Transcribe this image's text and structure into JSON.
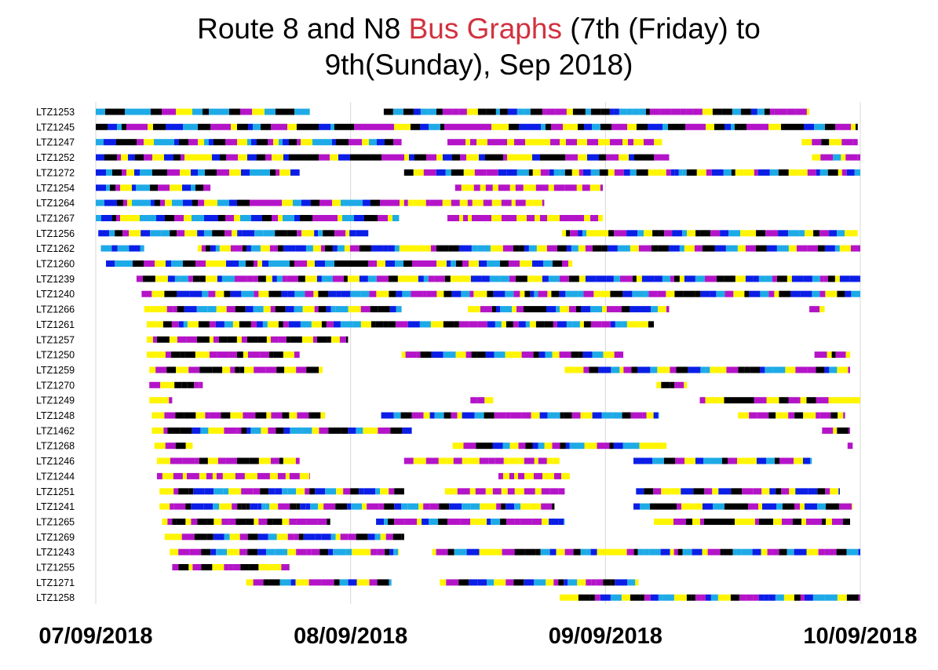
{
  "title": {
    "line1_pre": "Route 8 and N8 ",
    "line1_highlight": "Bus Graphs",
    "line1_post": " (7th (Friday) to",
    "line2": "9th(Sunday), Sep 2018)"
  },
  "colors": {
    "title_highlight": "#d2323f",
    "black": "#000000",
    "blue": "#0a1ee6",
    "lightblue": "#1eaae6",
    "magenta": "#b414c8",
    "yellow": "#fff500",
    "gridline": "#d9d9d9"
  },
  "chart_data": {
    "type": "timeline",
    "x_axis_unit": "days since 07/09/2018 00:00",
    "xlim": [
      0,
      3
    ],
    "x_ticks": [
      {
        "value": 0,
        "label": "07/09/2018"
      },
      {
        "value": 1,
        "label": "08/09/2018"
      },
      {
        "value": 2,
        "label": "09/09/2018"
      },
      {
        "value": 3,
        "label": "10/09/2018"
      }
    ],
    "grid": "vertical at day boundaries",
    "color_order": [
      "blue",
      "lightblue",
      "black",
      "magenta",
      "yellow"
    ],
    "buses": [
      {
        "id": "LTZ1253",
        "segments": [
          [
            0.0,
            0.84,
            "cdcdmmy"
          ],
          [
            1.13,
            2.8,
            "dcdbcdmmmy"
          ]
        ]
      },
      {
        "id": "LTZ1245",
        "segments": [
          [
            0.0,
            2.99,
            "dbcdmmy"
          ]
        ]
      },
      {
        "id": "LTZ1247",
        "segments": [
          [
            0.0,
            1.2,
            "cbdmy"
          ],
          [
            1.38,
            2.21,
            "my"
          ],
          [
            2.21,
            2.21,
            "y"
          ],
          [
            2.77,
            2.99,
            "ymd"
          ]
        ]
      },
      {
        "id": "LTZ1252",
        "segments": [
          [
            0.0,
            2.25,
            "bdmy"
          ],
          [
            2.81,
            3.0,
            "ymc"
          ]
        ]
      },
      {
        "id": "LTZ1272",
        "segments": [
          [
            0.0,
            0.8,
            "bcdmy"
          ],
          [
            1.21,
            3.0,
            "dymbc"
          ]
        ]
      },
      {
        "id": "LTZ1254",
        "segments": [
          [
            0.0,
            0.45,
            "bcdmy"
          ],
          [
            1.41,
            1.99,
            "my"
          ]
        ]
      },
      {
        "id": "LTZ1264",
        "segments": [
          [
            0.0,
            1.21,
            "cbdmy"
          ],
          [
            1.21,
            1.76,
            "my"
          ]
        ]
      },
      {
        "id": "LTZ1267",
        "segments": [
          [
            0.0,
            1.19,
            "cbdmy"
          ],
          [
            1.38,
            1.99,
            "my"
          ]
        ]
      },
      {
        "id": "LTZ1256",
        "segments": [
          [
            0.01,
            1.07,
            "bcdmy"
          ],
          [
            1.83,
            2.99,
            "ydmbc"
          ]
        ]
      },
      {
        "id": "LTZ1262",
        "segments": [
          [
            0.02,
            0.19,
            "cb"
          ],
          [
            0.4,
            3.0,
            "ymdbc"
          ]
        ]
      },
      {
        "id": "LTZ1260",
        "segments": [
          [
            0.04,
            1.87,
            "bcdmy"
          ]
        ]
      },
      {
        "id": "LTZ1239",
        "segments": [
          [
            0.16,
            3.0,
            "mdybc"
          ]
        ]
      },
      {
        "id": "LTZ1240",
        "segments": [
          [
            0.18,
            3.0,
            "mydbc"
          ]
        ]
      },
      {
        "id": "LTZ1266",
        "segments": [
          [
            0.19,
            1.2,
            "ymdbc"
          ],
          [
            1.46,
            2.25,
            "ymdbc"
          ],
          [
            2.8,
            2.86,
            "my"
          ]
        ]
      },
      {
        "id": "LTZ1261",
        "segments": [
          [
            0.2,
            2.19,
            "ydmbc"
          ]
        ]
      },
      {
        "id": "LTZ1257",
        "segments": [
          [
            0.2,
            0.99,
            "ymd"
          ]
        ]
      },
      {
        "id": "LTZ1250",
        "segments": [
          [
            0.2,
            0.8,
            "ymd"
          ],
          [
            1.2,
            2.07,
            "ymdbc"
          ],
          [
            2.82,
            2.96,
            "myd"
          ]
        ]
      },
      {
        "id": "LTZ1259",
        "segments": [
          [
            0.21,
            0.89,
            "ymd"
          ],
          [
            1.84,
            2.96,
            "ymdbc"
          ]
        ]
      },
      {
        "id": "LTZ1270",
        "segments": [
          [
            0.21,
            0.42,
            "myd"
          ],
          [
            2.2,
            2.32,
            "ydm"
          ]
        ]
      },
      {
        "id": "LTZ1249",
        "segments": [
          [
            0.21,
            0.3,
            "ym"
          ],
          [
            1.47,
            1.56,
            "my"
          ],
          [
            2.37,
            3.0,
            "myd"
          ]
        ]
      },
      {
        "id": "LTZ1248",
        "segments": [
          [
            0.22,
            0.9,
            "ymd"
          ],
          [
            1.12,
            2.21,
            "bcdmy"
          ],
          [
            2.52,
            2.94,
            "ymd"
          ]
        ]
      },
      {
        "id": "LTZ1462",
        "segments": [
          [
            0.22,
            1.24,
            "ymdbc"
          ],
          [
            2.85,
            2.96,
            "myd"
          ]
        ]
      },
      {
        "id": "LTZ1268",
        "segments": [
          [
            0.23,
            0.38,
            "ymd"
          ],
          [
            1.4,
            2.24,
            "ymdbc"
          ],
          [
            2.95,
            2.97,
            "m"
          ]
        ]
      },
      {
        "id": "LTZ1246",
        "segments": [
          [
            0.24,
            0.8,
            "ymd"
          ],
          [
            1.21,
            1.82,
            "my"
          ],
          [
            2.11,
            2.81,
            "bcdmy"
          ]
        ]
      },
      {
        "id": "LTZ1244",
        "segments": [
          [
            0.24,
            0.84,
            "my"
          ],
          [
            1.58,
            1.86,
            "my"
          ]
        ]
      },
      {
        "id": "LTZ1251",
        "segments": [
          [
            0.25,
            1.21,
            "ymdbc"
          ],
          [
            1.37,
            1.84,
            "ym"
          ],
          [
            2.12,
            2.92,
            "bdmy"
          ]
        ]
      },
      {
        "id": "LTZ1241",
        "segments": [
          [
            0.25,
            1.8,
            "ymdbc"
          ],
          [
            2.11,
            2.97,
            "bcdmy"
          ]
        ]
      },
      {
        "id": "LTZ1265",
        "segments": [
          [
            0.26,
            0.92,
            "ymd"
          ],
          [
            1.1,
            1.84,
            "bcdmy"
          ],
          [
            2.19,
            2.96,
            "ymd"
          ]
        ]
      },
      {
        "id": "LTZ1269",
        "segments": [
          [
            0.27,
            1.21,
            "ymdbc"
          ]
        ]
      },
      {
        "id": "LTZ1243",
        "segments": [
          [
            0.29,
            1.19,
            "ymdbc"
          ],
          [
            1.32,
            3.0,
            "ymdcb"
          ]
        ]
      },
      {
        "id": "LTZ1255",
        "segments": [
          [
            0.3,
            0.76,
            "mdy"
          ]
        ]
      },
      {
        "id": "LTZ1271",
        "segments": [
          [
            0.59,
            1.16,
            "ymdcb"
          ],
          [
            1.35,
            2.13,
            "ymdbc"
          ]
        ]
      },
      {
        "id": "LTZ1258",
        "segments": [
          [
            1.82,
            3.0,
            "ydmbc"
          ]
        ]
      }
    ]
  }
}
